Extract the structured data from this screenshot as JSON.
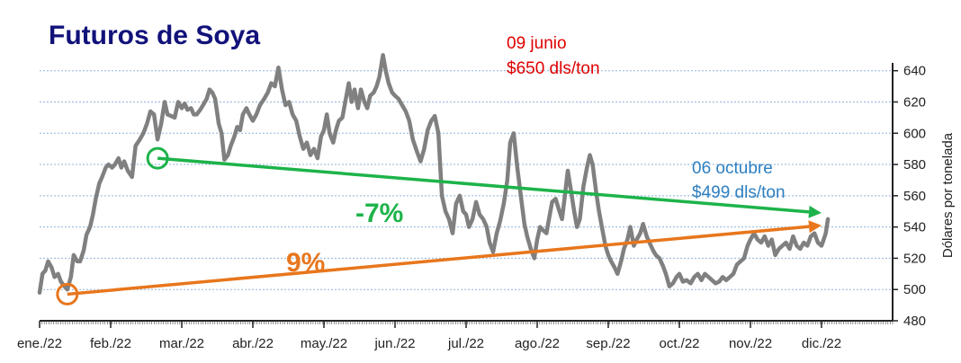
{
  "chart_data": {
    "type": "line",
    "title": "Futuros de Soya",
    "ylabel": "Dólares por tonelada",
    "ylim": [
      480,
      645
    ],
    "yticks": [
      480,
      500,
      520,
      540,
      560,
      580,
      600,
      620,
      640
    ],
    "y_axis_side": "right",
    "grid": "horizontal-dotted",
    "months": [
      "ene./22",
      "feb./22",
      "mar./22",
      "abr./22",
      "may./22",
      "jun./22",
      "jul./22",
      "ago./22",
      "sep./22",
      "oct./22",
      "nov./22",
      "dic./22"
    ],
    "series": [
      {
        "color": "#808080",
        "points": [
          [
            0.0,
            498
          ],
          [
            0.04,
            510
          ],
          [
            0.08,
            512
          ],
          [
            0.12,
            518
          ],
          [
            0.17,
            514
          ],
          [
            0.21,
            508
          ],
          [
            0.26,
            510
          ],
          [
            0.3,
            505
          ],
          [
            0.35,
            502
          ],
          [
            0.39,
            500
          ],
          [
            0.44,
            508
          ],
          [
            0.48,
            522
          ],
          [
            0.53,
            518
          ],
          [
            0.57,
            518
          ],
          [
            0.62,
            525
          ],
          [
            0.66,
            535
          ],
          [
            0.71,
            540
          ],
          [
            0.75,
            548
          ],
          [
            0.79,
            558
          ],
          [
            0.84,
            568
          ],
          [
            0.88,
            572
          ],
          [
            0.93,
            578
          ],
          [
            0.97,
            580
          ],
          [
            1.02,
            578
          ],
          [
            1.06,
            580
          ],
          [
            1.11,
            584
          ],
          [
            1.15,
            578
          ],
          [
            1.19,
            582
          ],
          [
            1.24,
            576
          ],
          [
            1.3,
            572
          ],
          [
            1.35,
            592
          ],
          [
            1.41,
            596
          ],
          [
            1.46,
            600
          ],
          [
            1.51,
            606
          ],
          [
            1.56,
            614
          ],
          [
            1.61,
            612
          ],
          [
            1.66,
            596
          ],
          [
            1.71,
            606
          ],
          [
            1.76,
            620
          ],
          [
            1.8,
            612
          ],
          [
            1.85,
            611
          ],
          [
            1.9,
            610
          ],
          [
            1.95,
            620
          ],
          [
            2.0,
            616
          ],
          [
            2.04,
            619
          ],
          [
            2.08,
            615
          ],
          [
            2.13,
            616
          ],
          [
            2.17,
            612
          ],
          [
            2.21,
            612
          ],
          [
            2.26,
            615
          ],
          [
            2.3,
            618
          ],
          [
            2.35,
            622
          ],
          [
            2.39,
            628
          ],
          [
            2.43,
            626
          ],
          [
            2.47,
            622
          ],
          [
            2.52,
            606
          ],
          [
            2.56,
            600
          ],
          [
            2.6,
            583
          ],
          [
            2.65,
            586
          ],
          [
            2.69,
            592
          ],
          [
            2.74,
            598
          ],
          [
            2.78,
            604
          ],
          [
            2.82,
            602
          ],
          [
            2.86,
            612
          ],
          [
            2.91,
            616
          ],
          [
            2.95,
            612
          ],
          [
            3.0,
            608
          ],
          [
            3.05,
            612
          ],
          [
            3.1,
            618
          ],
          [
            3.16,
            622
          ],
          [
            3.21,
            626
          ],
          [
            3.26,
            632
          ],
          [
            3.31,
            630
          ],
          [
            3.36,
            642
          ],
          [
            3.41,
            628
          ],
          [
            3.46,
            618
          ],
          [
            3.51,
            620
          ],
          [
            3.56,
            612
          ],
          [
            3.61,
            608
          ],
          [
            3.66,
            598
          ],
          [
            3.71,
            590
          ],
          [
            3.76,
            594
          ],
          [
            3.81,
            586
          ],
          [
            3.86,
            590
          ],
          [
            3.91,
            584
          ],
          [
            3.96,
            598
          ],
          [
            4.0,
            602
          ],
          [
            4.04,
            612
          ],
          [
            4.08,
            600
          ],
          [
            4.13,
            594
          ],
          [
            4.17,
            602
          ],
          [
            4.21,
            608
          ],
          [
            4.26,
            610
          ],
          [
            4.3,
            620
          ],
          [
            4.35,
            632
          ],
          [
            4.39,
            620
          ],
          [
            4.43,
            628
          ],
          [
            4.48,
            616
          ],
          [
            4.52,
            628
          ],
          [
            4.57,
            620
          ],
          [
            4.61,
            616
          ],
          [
            4.65,
            624
          ],
          [
            4.7,
            626
          ],
          [
            4.74,
            630
          ],
          [
            4.78,
            636
          ],
          [
            4.83,
            650
          ],
          [
            4.87,
            640
          ],
          [
            4.91,
            632
          ],
          [
            4.96,
            626
          ],
          [
            5.0,
            624
          ],
          [
            5.05,
            622
          ],
          [
            5.1,
            618
          ],
          [
            5.15,
            614
          ],
          [
            5.2,
            608
          ],
          [
            5.25,
            596
          ],
          [
            5.31,
            588
          ],
          [
            5.36,
            582
          ],
          [
            5.41,
            590
          ],
          [
            5.46,
            602
          ],
          [
            5.51,
            608
          ],
          [
            5.56,
            611
          ],
          [
            5.61,
            600
          ],
          [
            5.66,
            560
          ],
          [
            5.71,
            550
          ],
          [
            5.76,
            545
          ],
          [
            5.81,
            536
          ],
          [
            5.86,
            555
          ],
          [
            5.91,
            560
          ],
          [
            5.96,
            550
          ],
          [
            6.0,
            548
          ],
          [
            6.04,
            540
          ],
          [
            6.09,
            545
          ],
          [
            6.14,
            556
          ],
          [
            6.19,
            548
          ],
          [
            6.24,
            545
          ],
          [
            6.29,
            540
          ],
          [
            6.33,
            530
          ],
          [
            6.38,
            524
          ],
          [
            6.43,
            536
          ],
          [
            6.48,
            544
          ],
          [
            6.53,
            555
          ],
          [
            6.58,
            570
          ],
          [
            6.62,
            594
          ],
          [
            6.67,
            600
          ],
          [
            6.72,
            578
          ],
          [
            6.77,
            560
          ],
          [
            6.82,
            542
          ],
          [
            6.86,
            534
          ],
          [
            6.91,
            526
          ],
          [
            6.96,
            520
          ],
          [
            7.0,
            532
          ],
          [
            7.04,
            540
          ],
          [
            7.08,
            538
          ],
          [
            7.13,
            536
          ],
          [
            7.17,
            546
          ],
          [
            7.21,
            556
          ],
          [
            7.26,
            558
          ],
          [
            7.3,
            552
          ],
          [
            7.35,
            545
          ],
          [
            7.39,
            560
          ],
          [
            7.43,
            576
          ],
          [
            7.47,
            565
          ],
          [
            7.52,
            550
          ],
          [
            7.56,
            540
          ],
          [
            7.6,
            545
          ],
          [
            7.65,
            566
          ],
          [
            7.7,
            578
          ],
          [
            7.74,
            586
          ],
          [
            7.78,
            580
          ],
          [
            7.83,
            562
          ],
          [
            7.87,
            550
          ],
          [
            7.91,
            540
          ],
          [
            7.96,
            528
          ],
          [
            8.0,
            522
          ],
          [
            8.04,
            518
          ],
          [
            8.09,
            514
          ],
          [
            8.13,
            510
          ],
          [
            8.18,
            518
          ],
          [
            8.22,
            526
          ],
          [
            8.27,
            532
          ],
          [
            8.31,
            540
          ],
          [
            8.36,
            528
          ],
          [
            8.4,
            532
          ],
          [
            8.45,
            536
          ],
          [
            8.49,
            542
          ],
          [
            8.54,
            534
          ],
          [
            8.58,
            530
          ],
          [
            8.63,
            525
          ],
          [
            8.67,
            522
          ],
          [
            8.72,
            520
          ],
          [
            8.77,
            515
          ],
          [
            8.81,
            510
          ],
          [
            8.86,
            502
          ],
          [
            8.91,
            504
          ],
          [
            8.96,
            508
          ],
          [
            9.0,
            510
          ],
          [
            9.05,
            505
          ],
          [
            9.1,
            506
          ],
          [
            9.16,
            504
          ],
          [
            9.21,
            508
          ],
          [
            9.26,
            510
          ],
          [
            9.31,
            506
          ],
          [
            9.36,
            510
          ],
          [
            9.41,
            508
          ],
          [
            9.46,
            506
          ],
          [
            9.51,
            504
          ],
          [
            9.56,
            505
          ],
          [
            9.61,
            508
          ],
          [
            9.66,
            506
          ],
          [
            9.71,
            508
          ],
          [
            9.76,
            510
          ],
          [
            9.81,
            516
          ],
          [
            9.86,
            518
          ],
          [
            9.91,
            520
          ],
          [
            9.96,
            528
          ],
          [
            10.0,
            532
          ],
          [
            10.05,
            536
          ],
          [
            10.1,
            532
          ],
          [
            10.15,
            530
          ],
          [
            10.2,
            534
          ],
          [
            10.25,
            528
          ],
          [
            10.3,
            532
          ],
          [
            10.35,
            522
          ],
          [
            10.4,
            526
          ],
          [
            10.45,
            528
          ],
          [
            10.5,
            530
          ],
          [
            10.55,
            526
          ],
          [
            10.6,
            534
          ],
          [
            10.65,
            528
          ],
          [
            10.7,
            526
          ],
          [
            10.75,
            530
          ],
          [
            10.8,
            528
          ],
          [
            10.85,
            534
          ],
          [
            10.9,
            536
          ],
          [
            10.95,
            530
          ],
          [
            11.0,
            528
          ],
          [
            11.03,
            532
          ],
          [
            11.06,
            536
          ],
          [
            11.09,
            545
          ]
        ]
      }
    ],
    "annotations": [
      {
        "text": "09 junio",
        "color": "#e00000"
      },
      {
        "text": "$650 dls/ton",
        "color": "#e00000"
      },
      {
        "text": "06 octubre",
        "color": "#2e7fc0"
      },
      {
        "text": "$499 dls/ton",
        "color": "#2e7fc0"
      }
    ],
    "trend_lines": [
      {
        "label": "-7%",
        "color": "#1db34a",
        "from": [
          1.66,
          584
        ],
        "to": [
          11.0,
          549
        ]
      },
      {
        "label": "9%",
        "color": "#e8761c",
        "from": [
          0.39,
          497
        ],
        "to": [
          11.0,
          541
        ]
      }
    ]
  }
}
